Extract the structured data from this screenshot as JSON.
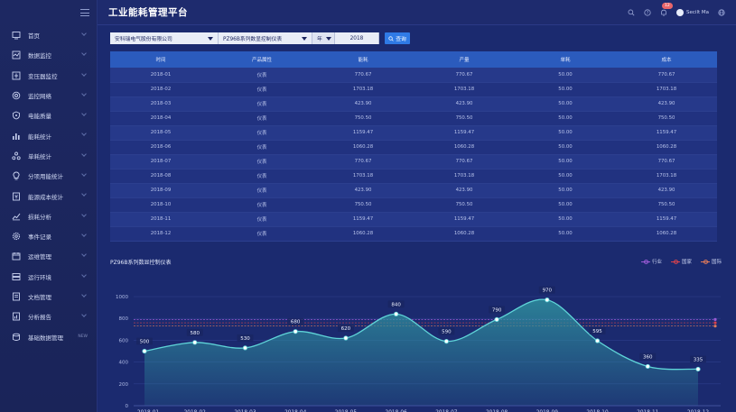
{
  "sidebar": {
    "items": [
      {
        "label": "首页",
        "icon": "monitor-icon"
      },
      {
        "label": "数据监控",
        "icon": "data-monitor-icon"
      },
      {
        "label": "变压器监控",
        "icon": "transformer-icon"
      },
      {
        "label": "监控网络",
        "icon": "network-icon"
      },
      {
        "label": "电能质量",
        "icon": "shield-icon"
      },
      {
        "label": "能耗统计",
        "icon": "bar-chart-icon"
      },
      {
        "label": "单耗统计",
        "icon": "nodes-icon"
      },
      {
        "label": "分项用能统计",
        "icon": "bulb-icon"
      },
      {
        "label": "能源成本统计",
        "icon": "cost-icon"
      },
      {
        "label": "损耗分析",
        "icon": "trend-icon"
      },
      {
        "label": "事件记录",
        "icon": "gear-icon"
      },
      {
        "label": "运维管理",
        "icon": "calendar-icon"
      },
      {
        "label": "运行环境",
        "icon": "server-icon"
      },
      {
        "label": "文档管理",
        "icon": "document-icon"
      },
      {
        "label": "分析报告",
        "icon": "report-icon"
      },
      {
        "label": "基础数据管理",
        "icon": "database-icon",
        "badge": "NEW"
      }
    ]
  },
  "header": {
    "title": "工业能耗管理平台",
    "notification_count": "12",
    "user_name": "Secilt Ma"
  },
  "filters": {
    "company": "安科瑞电气股份有限公司",
    "device": "PZ96B系列数显控制仪表",
    "period_type": "年",
    "year": "2018",
    "query_label": "查询"
  },
  "table": {
    "headers": [
      "时间",
      "产品属性",
      "能耗",
      "产量",
      "单耗",
      "成本"
    ],
    "rows": [
      [
        "2018-01",
        "仪表",
        "770.67",
        "770.67",
        "50.00",
        "770.67"
      ],
      [
        "2018-02",
        "仪表",
        "1703.18",
        "1703.18",
        "50.00",
        "1703.18"
      ],
      [
        "2018-03",
        "仪表",
        "423.90",
        "423.90",
        "50.00",
        "423.90"
      ],
      [
        "2018-04",
        "仪表",
        "750.50",
        "750.50",
        "50.00",
        "750.50"
      ],
      [
        "2018-05",
        "仪表",
        "1159.47",
        "1159.47",
        "50.00",
        "1159.47"
      ],
      [
        "2018-06",
        "仪表",
        "1060.28",
        "1060.28",
        "50.00",
        "1060.28"
      ],
      [
        "2018-07",
        "仪表",
        "770.67",
        "770.67",
        "50.00",
        "770.67"
      ],
      [
        "2018-08",
        "仪表",
        "1703.18",
        "1703.18",
        "50.00",
        "1703.18"
      ],
      [
        "2018-09",
        "仪表",
        "423.90",
        "423.90",
        "50.00",
        "423.90"
      ],
      [
        "2018-10",
        "仪表",
        "750.50",
        "750.50",
        "50.00",
        "750.50"
      ],
      [
        "2018-11",
        "仪表",
        "1159.47",
        "1159.47",
        "50.00",
        "1159.47"
      ],
      [
        "2018-12",
        "仪表",
        "1060.28",
        "1060.28",
        "50.00",
        "1060.28"
      ]
    ]
  },
  "chart_data": {
    "type": "area",
    "title": "PZ96B系列数显控制仪表",
    "categories": [
      "2018-01",
      "2018-02",
      "2018-03",
      "2018-04",
      "2018-05",
      "2018-06",
      "2018-07",
      "2018-08",
      "2018-09",
      "2018-10",
      "2018-11",
      "2018-12"
    ],
    "values": [
      500,
      580,
      530,
      680,
      620,
      840,
      590,
      790,
      970,
      595,
      360,
      335
    ],
    "ylim": [
      0,
      1000
    ],
    "yticks": [
      0,
      200,
      400,
      600,
      800,
      1000
    ],
    "legend": [
      "行业",
      "国家",
      "国际"
    ],
    "legend_placement": "top-right",
    "reference_lines": [
      {
        "name": "行业",
        "value": 790,
        "color": "#9b5bd6"
      },
      {
        "name": "国家",
        "value": 760,
        "color": "#d9424c"
      },
      {
        "name": "国际",
        "value": 730,
        "color": "#e07a5a"
      }
    ],
    "line_color": "#5fd4d8",
    "fill_color": "#2e8f9e"
  }
}
